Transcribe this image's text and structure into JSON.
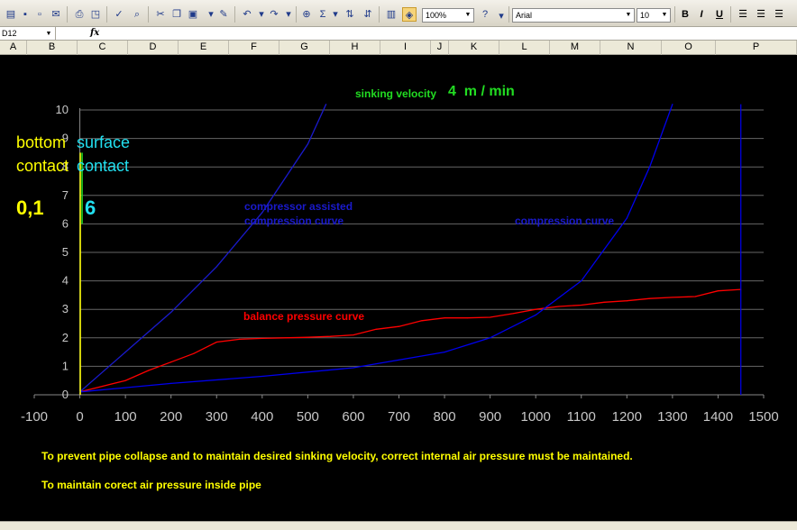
{
  "toolbar": {
    "zoom": "100%",
    "font_name": "Arial",
    "font_size": "10",
    "bold_label": "B",
    "italic_label": "I",
    "underline_label": "U",
    "sigma_label": "Σ"
  },
  "formula_bar": {
    "name_box": "D12",
    "fx_label": "fx"
  },
  "columns": [
    "A",
    "B",
    "C",
    "D",
    "E",
    "F",
    "G",
    "H",
    "I",
    "J",
    "K",
    "L",
    "M",
    "N",
    "O",
    "P"
  ],
  "annotations": {
    "sinking_velocity_label": "sinking velocity",
    "sinking_velocity_value": "4  m / min",
    "bottom_contact": "bottom\ncontact",
    "surface_contact": "surface\ncontact",
    "bottom_value": "0,1",
    "surface_value": "6",
    "compressor_assisted": "compressor assisted\ncompression curve",
    "compression_curve": "compression curve",
    "balance_pressure_curve": "balance pressure curve",
    "note1": "To prevent pipe collapse and to maintain desired sinking velocity, correct internal air pressure must be maintained.",
    "note2": "To maintain corect air pressure inside pipe"
  },
  "colors": {
    "background": "#000000",
    "balance": "#ff0000",
    "compression": "#0000ee",
    "grid": "#666666",
    "axis_text": "#c8c8c8",
    "yellow": "#ffff00",
    "cyan": "#22e0f0",
    "green": "#22dd22"
  },
  "chart_data": {
    "type": "line",
    "xlim": [
      -100,
      1500
    ],
    "ylim": [
      0,
      10
    ],
    "x_ticks": [
      -100,
      0,
      100,
      200,
      300,
      400,
      500,
      600,
      700,
      800,
      900,
      1000,
      1100,
      1200,
      1300,
      1400,
      1500
    ],
    "y_ticks": [
      0,
      1,
      2,
      3,
      4,
      5,
      6,
      7,
      8,
      9,
      10
    ],
    "grid": true,
    "series": [
      {
        "name": "balance pressure curve",
        "color": "#ff0000",
        "x": [
          0,
          50,
          100,
          150,
          200,
          250,
          300,
          350,
          400,
          450,
          500,
          550,
          600,
          650,
          700,
          750,
          800,
          850,
          900,
          950,
          1000,
          1050,
          1100,
          1150,
          1200,
          1250,
          1300,
          1350,
          1400,
          1450
        ],
        "y": [
          0.1,
          0.3,
          0.5,
          0.85,
          1.15,
          1.45,
          1.85,
          1.95,
          1.98,
          2.0,
          2.02,
          2.05,
          2.1,
          2.3,
          2.4,
          2.6,
          2.7,
          2.7,
          2.72,
          2.85,
          3.0,
          3.1,
          3.15,
          3.25,
          3.3,
          3.38,
          3.42,
          3.45,
          3.65,
          3.7
        ]
      },
      {
        "name": "compression curve",
        "color": "#0000ee",
        "x": [
          0,
          200,
          400,
          600,
          800,
          900,
          1000,
          1100,
          1200,
          1250,
          1300
        ],
        "y": [
          0.1,
          0.4,
          0.65,
          0.95,
          1.5,
          2.0,
          2.8,
          4.0,
          6.2,
          8.0,
          10.2
        ]
      },
      {
        "name": "compressor assisted compression curve",
        "color": "#1a1acc",
        "x": [
          0,
          100,
          200,
          300,
          400,
          500,
          540
        ],
        "y": [
          0.1,
          1.5,
          2.9,
          4.5,
          6.4,
          8.8,
          10.2
        ]
      }
    ]
  }
}
